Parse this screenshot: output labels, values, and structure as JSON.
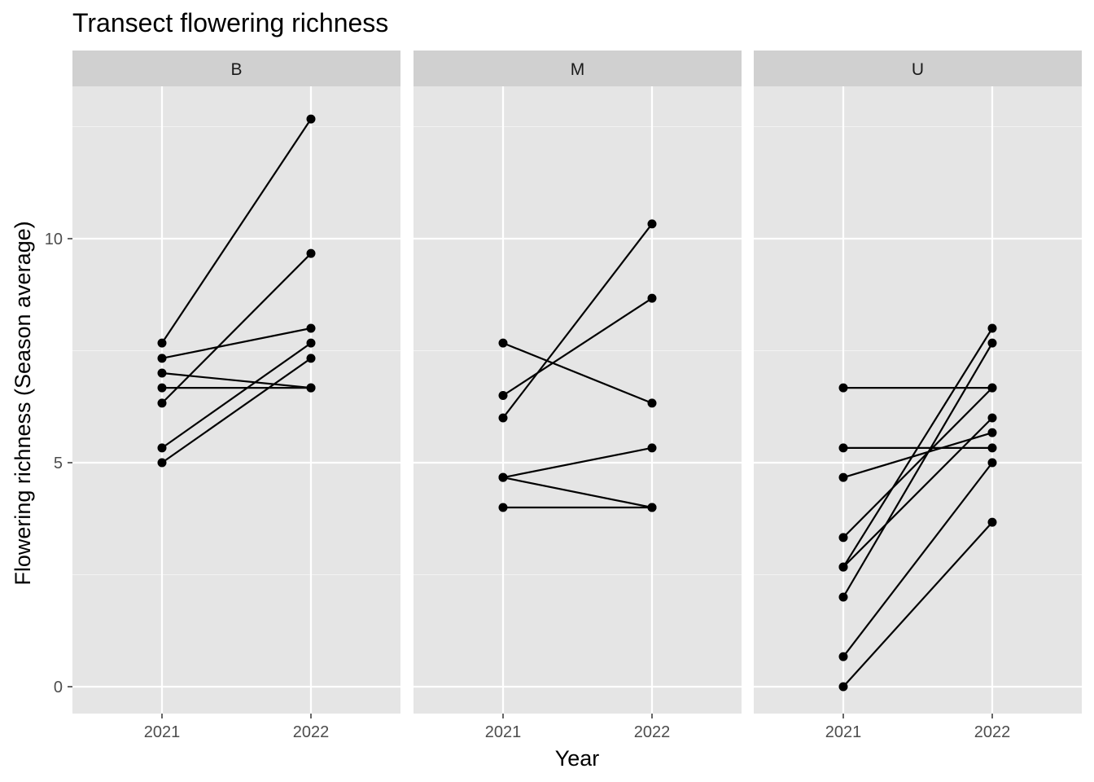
{
  "chart_data": {
    "type": "line",
    "title": "Transect flowering richness",
    "xlabel": "Year",
    "ylabel": "Flowering richness (Season average)",
    "x_categories": [
      "2021",
      "2022"
    ],
    "ylim": [
      -0.6,
      13.4
    ],
    "y_major_ticks": [
      0,
      5,
      10
    ],
    "y_minor_ticks": [
      2.5,
      7.5,
      12.5
    ],
    "grid": true,
    "line_color": "#000000",
    "point_color": "#000000",
    "panel_background": "#e5e5e5",
    "strip_background": "#d0d0d0",
    "panels": [
      {
        "label": "B",
        "series": [
          {
            "values": [
              7.67,
              12.67
            ]
          },
          {
            "values": [
              6.33,
              9.67
            ]
          },
          {
            "values": [
              7.33,
              8.0
            ]
          },
          {
            "values": [
              5.33,
              7.67
            ]
          },
          {
            "values": [
              5.0,
              7.33
            ]
          },
          {
            "values": [
              7.0,
              6.67
            ]
          },
          {
            "values": [
              6.67,
              6.67
            ]
          }
        ]
      },
      {
        "label": "M",
        "series": [
          {
            "values": [
              6.0,
              10.33
            ]
          },
          {
            "values": [
              6.5,
              8.67
            ]
          },
          {
            "values": [
              7.67,
              6.33
            ]
          },
          {
            "values": [
              4.67,
              5.33
            ]
          },
          {
            "values": [
              4.67,
              4.0
            ]
          },
          {
            "values": [
              4.0,
              4.0
            ]
          }
        ]
      },
      {
        "label": "U",
        "series": [
          {
            "values": [
              6.67,
              6.67
            ]
          },
          {
            "values": [
              5.33,
              5.33
            ]
          },
          {
            "values": [
              4.67,
              5.67
            ]
          },
          {
            "values": [
              3.33,
              6.67
            ]
          },
          {
            "values": [
              2.67,
              8.0
            ]
          },
          {
            "values": [
              2.67,
              6.0
            ]
          },
          {
            "values": [
              2.0,
              7.67
            ]
          },
          {
            "values": [
              0.67,
              5.0
            ]
          },
          {
            "values": [
              0.0,
              3.67
            ]
          }
        ]
      }
    ]
  }
}
